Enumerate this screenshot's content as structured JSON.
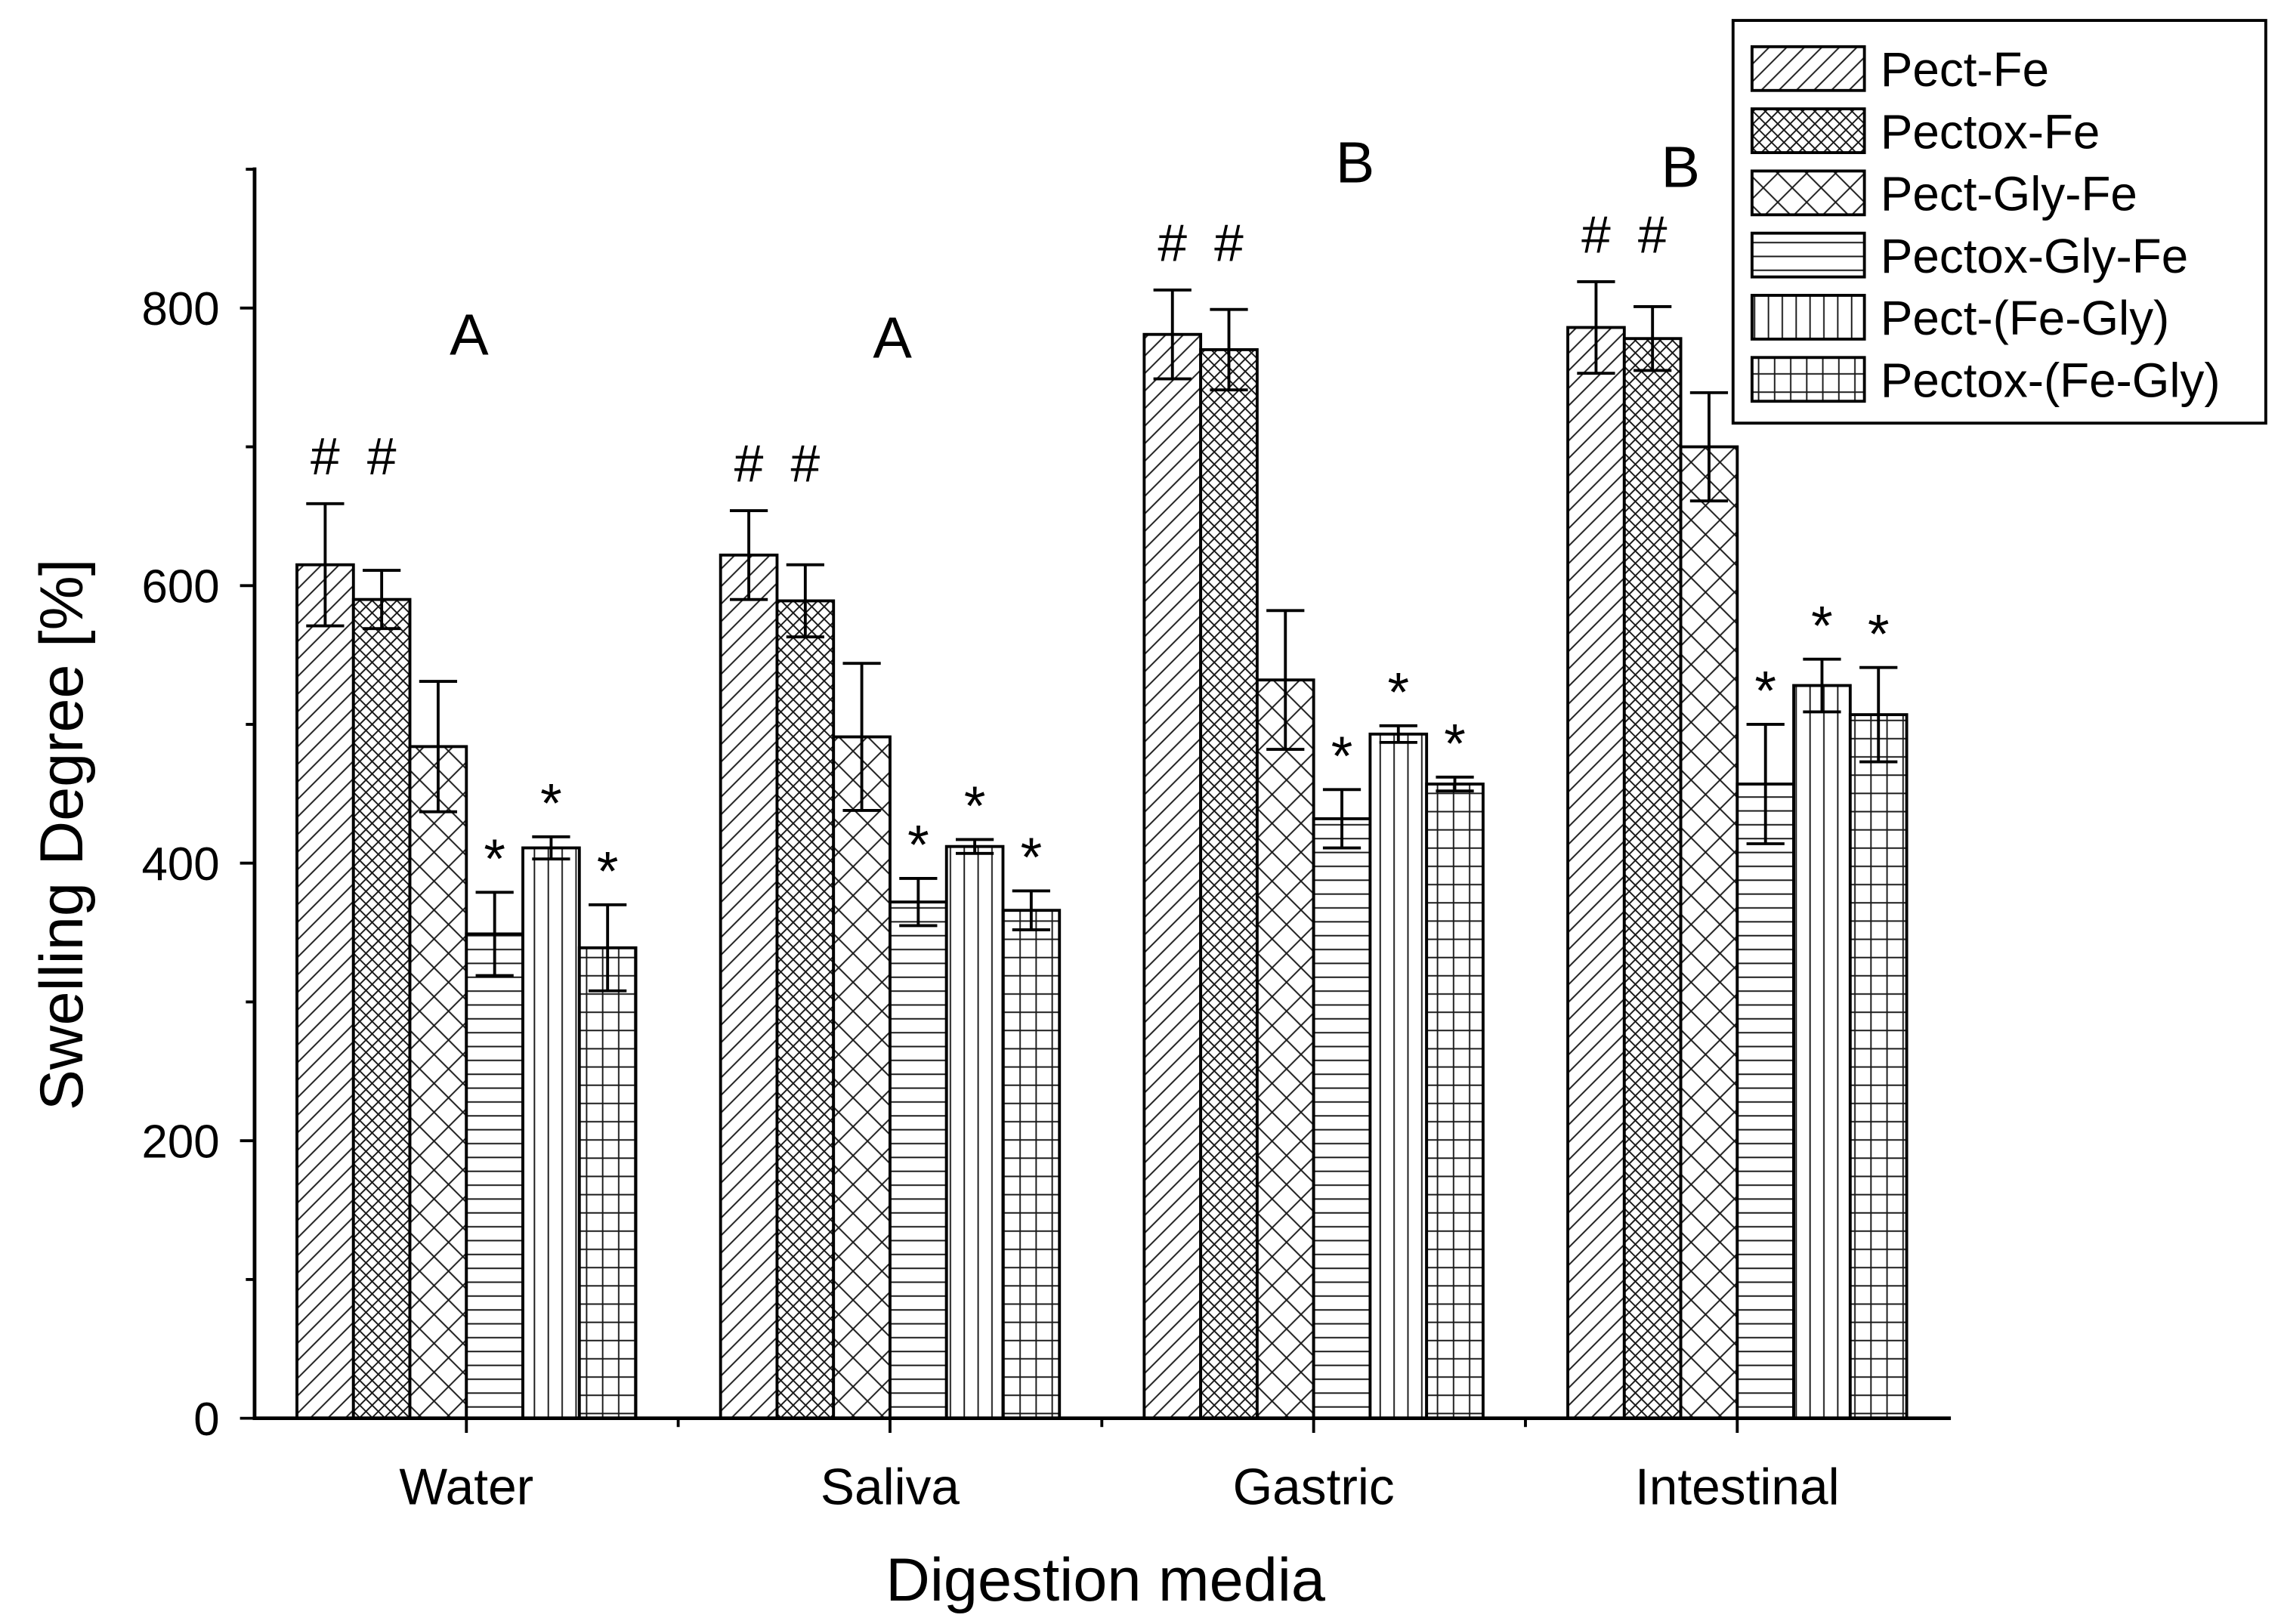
{
  "chart_data": {
    "type": "bar",
    "xlabel": "Digestion media",
    "ylabel": "Swelling Degree [%]",
    "categories": [
      "Water",
      "Saliva",
      "Gastric",
      "Intestinal"
    ],
    "ylim": [
      0,
      900
    ],
    "yticks": [
      0,
      200,
      400,
      600,
      800
    ],
    "grid": false,
    "legend": "top-right",
    "group_letters": [
      "A",
      "A",
      "B",
      "B"
    ],
    "series": [
      {
        "name": "Pect-Fe",
        "pattern": "diagonal-lines",
        "values": [
          615,
          622,
          781,
          786
        ],
        "errors": [
          44,
          32,
          32,
          33
        ],
        "annotations": [
          "#",
          "#",
          "#",
          "#"
        ]
      },
      {
        "name": "Pectox-Fe",
        "pattern": "dense-crosshatch",
        "values": [
          590,
          589,
          770,
          778
        ],
        "errors": [
          21,
          26,
          29,
          23
        ],
        "annotations": [
          "#",
          "#",
          "#",
          "#"
        ]
      },
      {
        "name": "Pect-Gly-Fe",
        "pattern": "sparse-crosshatch",
        "values": [
          484,
          491,
          532,
          700
        ],
        "errors": [
          47,
          53,
          50,
          39
        ],
        "annotations": [
          null,
          null,
          null,
          null
        ]
      },
      {
        "name": "Pectox-Gly-Fe",
        "pattern": "horizontal-lines",
        "values": [
          349,
          372,
          432,
          457
        ],
        "errors": [
          30,
          17,
          21,
          43
        ],
        "annotations": [
          "*",
          "*",
          "*",
          "*"
        ]
      },
      {
        "name": "Pect-(Fe-Gly)",
        "pattern": "vertical-lines",
        "values": [
          411,
          412,
          493,
          528
        ],
        "errors": [
          8,
          5,
          6,
          19
        ],
        "annotations": [
          "*",
          "*",
          "*",
          "*"
        ]
      },
      {
        "name": "Pectox-(Fe-Gly)",
        "pattern": "grid",
        "values": [
          339,
          366,
          457,
          507
        ],
        "errors": [
          31,
          14,
          5,
          34
        ],
        "annotations": [
          "*",
          "*",
          "*",
          "*"
        ]
      }
    ]
  }
}
